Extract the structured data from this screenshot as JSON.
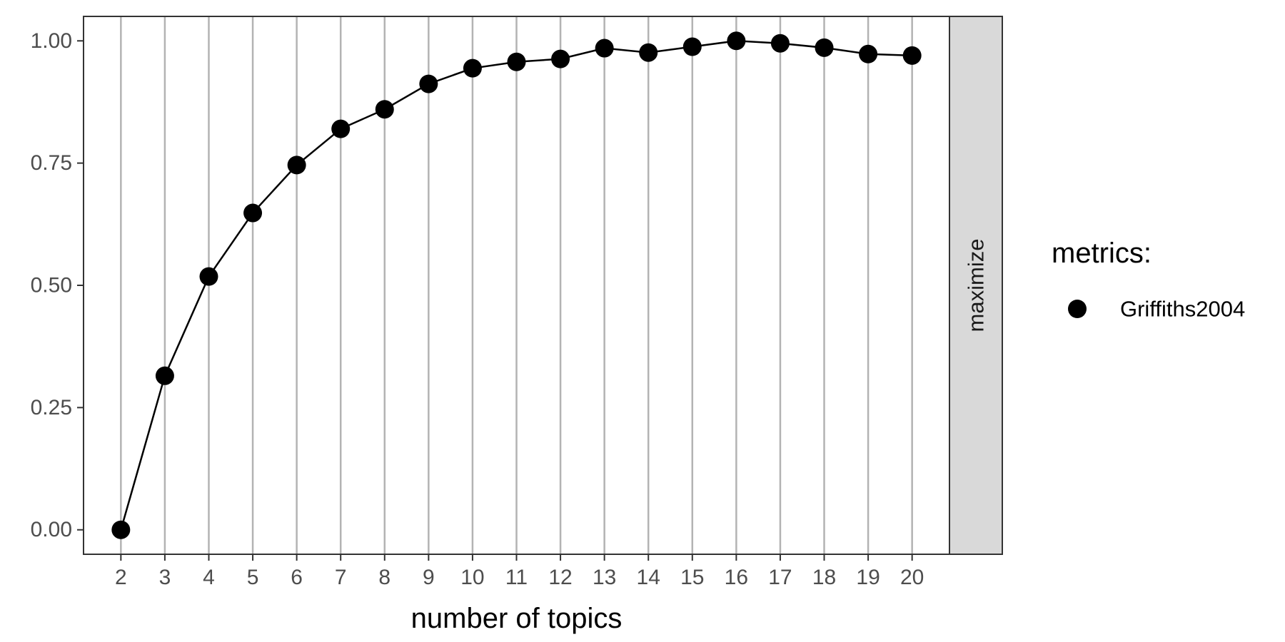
{
  "chart_data": {
    "type": "line",
    "title": "",
    "xlabel": "number of topics",
    "ylabel": "",
    "x": [
      2,
      3,
      4,
      5,
      6,
      7,
      8,
      9,
      10,
      11,
      12,
      13,
      14,
      15,
      16,
      17,
      18,
      19,
      20
    ],
    "x_ticks": [
      "2",
      "3",
      "4",
      "5",
      "6",
      "7",
      "8",
      "9",
      "10",
      "11",
      "12",
      "13",
      "14",
      "15",
      "16",
      "17",
      "18",
      "19",
      "20"
    ],
    "y_ticks": [
      "0.00",
      "0.25",
      "0.50",
      "0.75",
      "1.00"
    ],
    "ylim": [
      -0.05,
      1.05
    ],
    "xlim": [
      1.15,
      20.85
    ],
    "grid": "vertical major lines",
    "facet_label": "maximize",
    "legend": {
      "title": "metrics:",
      "position": "right",
      "entries": [
        "Griffiths2004"
      ]
    },
    "series": [
      {
        "name": "Griffiths2004",
        "color": "#000000",
        "values": [
          0.0,
          0.315,
          0.518,
          0.648,
          0.746,
          0.82,
          0.86,
          0.912,
          0.944,
          0.957,
          0.963,
          0.985,
          0.976,
          0.988,
          1.0,
          0.995,
          0.986,
          0.973,
          0.97
        ]
      }
    ],
    "colors": {
      "grid": "#b3b3b3",
      "strip_fill": "#d9d9d9",
      "border": "#333333",
      "tick_text": "#4d4d4d"
    }
  }
}
